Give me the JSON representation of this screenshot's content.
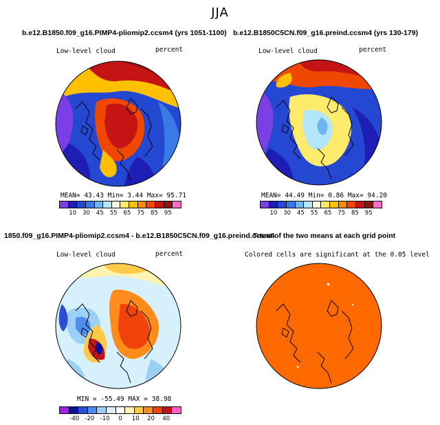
{
  "season": "JJA",
  "colors": {
    "sequential": [
      "#7b3fe6",
      "#1e1eb4",
      "#2548d2",
      "#3a7ae6",
      "#6fb5f0",
      "#b3e6fa",
      "#fffde0",
      "#ffeb6b",
      "#ffc000",
      "#ff8c00",
      "#f04800",
      "#c41414",
      "#8c1414",
      "#ff6ec7"
    ],
    "diverging": [
      "#a020f0",
      "#10109a",
      "#2a4ed6",
      "#4f8ceb",
      "#9cd0f6",
      "#d6f0fc",
      "#ffffff",
      "#fff3b0",
      "#ffc94a",
      "#ff8c1a",
      "#f0420a",
      "#c21616",
      "#ff5ec4"
    ],
    "sig_fill": "#ff6a00"
  },
  "panels": {
    "p1": {
      "title": "b.e12.B1850.f09_g16.PIMP4-pliomip2.ccsm4 (yrs 1051-1100)",
      "left_label": "Low-level cloud",
      "right_label": "percent",
      "stats": "MEAN=  43.43  Min=   3.44  Max=  95.71",
      "ticks": [
        "10",
        "30",
        "45",
        "55",
        "65",
        "75",
        "85",
        "95"
      ]
    },
    "p2": {
      "title": "b.e12.B1850C5CN.f09_g16.preind.ccsm4 (yrs 130-179)",
      "left_label": "Low-level cloud",
      "right_label": "percent",
      "stats": "MEAN=  44.49  Min=   0.86  Max=  94.20",
      "ticks": [
        "10",
        "30",
        "45",
        "55",
        "65",
        "75",
        "85",
        "95"
      ]
    },
    "p3": {
      "title": "1850.f09_g16.PIMP4-pliomip2.ccsm4 - b.e12.B1850C5CN.f09_g16.preind.ccsm4",
      "left_label": "Low-level cloud",
      "right_label": "percent",
      "stats": "MIN = -55.49  MAX =  38.98",
      "ticks": [
        "-40",
        "-20",
        "-10",
        "0",
        "10",
        "20",
        "40"
      ]
    },
    "p4": {
      "title": "T-test of the two means at each grid point",
      "label": "Colored cells are significant at the 0.05 level"
    }
  }
}
